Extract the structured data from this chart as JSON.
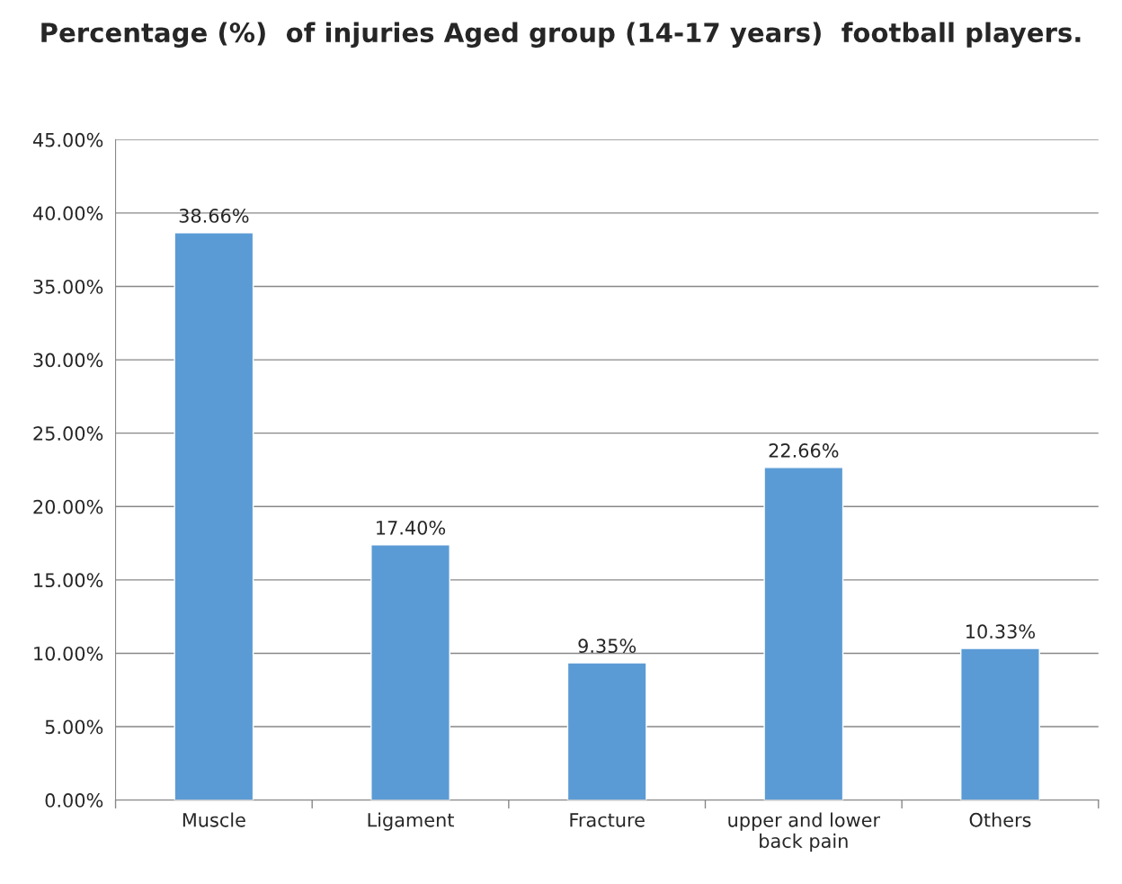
{
  "chart_data": {
    "type": "bar",
    "title": "Percentage (%)  of injuries Aged group (14-17 years)  football players.",
    "categories": [
      "Muscle",
      "Ligament",
      "Fracture",
      "upper and lower\nback pain",
      "Others"
    ],
    "values": [
      38.66,
      17.4,
      9.35,
      22.66,
      10.33
    ],
    "value_labels": [
      "38.66%",
      "17.40%",
      "9.35%",
      "22.66%",
      "10.33%"
    ],
    "color": "#5b9bd5",
    "ylim": [
      0,
      45
    ],
    "yticks": [
      {
        "value": 0,
        "label": "0.00%"
      },
      {
        "value": 5,
        "label": "5.00%"
      },
      {
        "value": 10,
        "label": "10.00%"
      },
      {
        "value": 15,
        "label": "15.00%"
      },
      {
        "value": 20,
        "label": "20.00%"
      },
      {
        "value": 25,
        "label": "25.00%"
      },
      {
        "value": 30,
        "label": "30.00%"
      },
      {
        "value": 35,
        "label": "35.00%"
      },
      {
        "value": 40,
        "label": "40.00%"
      },
      {
        "value": 45,
        "label": "45.00%"
      }
    ],
    "grid": "y",
    "legend": false
  }
}
